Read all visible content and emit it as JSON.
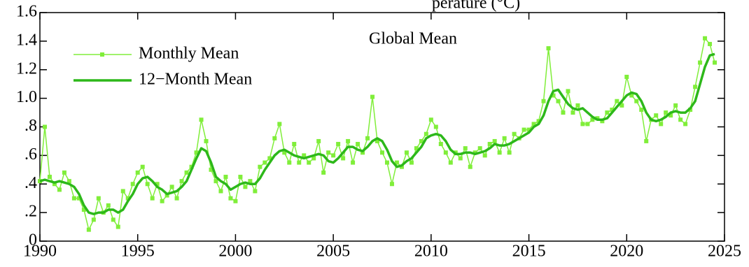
{
  "chart_data": {
    "type": "line",
    "title": "perature (°C)",
    "annotation": "Global Mean",
    "x": [
      1990,
      1990.25,
      1990.5,
      1990.75,
      1991,
      1991.25,
      1991.5,
      1991.75,
      1992,
      1992.25,
      1992.5,
      1992.75,
      1993,
      1993.25,
      1993.5,
      1993.75,
      1994,
      1994.25,
      1994.5,
      1994.75,
      1995,
      1995.25,
      1995.5,
      1995.75,
      1996,
      1996.25,
      1996.5,
      1996.75,
      1997,
      1997.25,
      1997.5,
      1997.75,
      1998,
      1998.25,
      1998.5,
      1998.75,
      1999,
      1999.25,
      1999.5,
      1999.75,
      2000,
      2000.25,
      2000.5,
      2000.75,
      2001,
      2001.25,
      2001.5,
      2001.75,
      2002,
      2002.25,
      2002.5,
      2002.75,
      2003,
      2003.25,
      2003.5,
      2003.75,
      2004,
      2004.25,
      2004.5,
      2004.75,
      2005,
      2005.25,
      2005.5,
      2005.75,
      2006,
      2006.25,
      2006.5,
      2006.75,
      2007,
      2007.25,
      2007.5,
      2007.75,
      2008,
      2008.25,
      2008.5,
      2008.75,
      2009,
      2009.25,
      2009.5,
      2009.75,
      2010,
      2010.25,
      2010.5,
      2010.75,
      2011,
      2011.25,
      2011.5,
      2011.75,
      2012,
      2012.25,
      2012.5,
      2012.75,
      2013,
      2013.25,
      2013.5,
      2013.75,
      2014,
      2014.25,
      2014.5,
      2014.75,
      2015,
      2015.25,
      2015.5,
      2015.75,
      2016,
      2016.25,
      2016.5,
      2016.75,
      2017,
      2017.25,
      2017.5,
      2017.75,
      2018,
      2018.25,
      2018.5,
      2018.75,
      2019,
      2019.25,
      2019.5,
      2019.75,
      2020,
      2020.25,
      2020.5,
      2020.75,
      2021,
      2021.25,
      2021.5,
      2021.75,
      2022,
      2022.25,
      2022.5,
      2022.75,
      2023,
      2023.25,
      2023.5,
      2023.75,
      2024,
      2024.25,
      2024.5
    ],
    "series": [
      {
        "name": "Monthly Mean",
        "color": "#80ee3a",
        "marker": "square",
        "line_width": 1.5,
        "values": [
          0.42,
          0.8,
          0.45,
          0.4,
          0.36,
          0.48,
          0.42,
          0.3,
          0.3,
          0.22,
          0.08,
          0.15,
          0.3,
          0.2,
          0.25,
          0.15,
          0.1,
          0.35,
          0.3,
          0.4,
          0.48,
          0.52,
          0.4,
          0.3,
          0.4,
          0.28,
          0.32,
          0.38,
          0.3,
          0.42,
          0.48,
          0.52,
          0.62,
          0.85,
          0.7,
          0.5,
          0.42,
          0.35,
          0.45,
          0.3,
          0.28,
          0.45,
          0.38,
          0.42,
          0.35,
          0.52,
          0.55,
          0.58,
          0.72,
          0.82,
          0.62,
          0.55,
          0.68,
          0.55,
          0.6,
          0.55,
          0.58,
          0.7,
          0.48,
          0.62,
          0.6,
          0.68,
          0.58,
          0.7,
          0.55,
          0.68,
          0.62,
          0.72,
          1.01,
          0.7,
          0.62,
          0.55,
          0.4,
          0.55,
          0.52,
          0.62,
          0.55,
          0.65,
          0.7,
          0.75,
          0.85,
          0.8,
          0.68,
          0.62,
          0.55,
          0.62,
          0.58,
          0.65,
          0.52,
          0.62,
          0.65,
          0.6,
          0.68,
          0.7,
          0.62,
          0.72,
          0.62,
          0.75,
          0.72,
          0.78,
          0.78,
          0.82,
          0.84,
          0.98,
          1.35,
          1.02,
          0.98,
          0.9,
          1.05,
          0.9,
          0.95,
          0.82,
          0.82,
          0.85,
          0.86,
          0.84,
          0.9,
          0.92,
          0.98,
          0.95,
          1.15,
          1.02,
          0.98,
          0.92,
          0.7,
          0.85,
          0.88,
          0.82,
          0.9,
          0.88,
          0.95,
          0.85,
          0.82,
          0.92,
          1.08,
          1.25,
          1.42,
          1.38,
          1.25
        ]
      },
      {
        "name": "12−Month Mean",
        "color": "#2db81a",
        "line_width": 3.5,
        "values": [
          0.42,
          0.43,
          0.42,
          0.41,
          0.42,
          0.41,
          0.4,
          0.38,
          0.33,
          0.25,
          0.2,
          0.19,
          0.2,
          0.2,
          0.22,
          0.22,
          0.2,
          0.22,
          0.28,
          0.33,
          0.4,
          0.44,
          0.45,
          0.42,
          0.38,
          0.36,
          0.33,
          0.34,
          0.35,
          0.38,
          0.42,
          0.5,
          0.58,
          0.65,
          0.63,
          0.55,
          0.45,
          0.42,
          0.4,
          0.36,
          0.38,
          0.4,
          0.41,
          0.4,
          0.4,
          0.44,
          0.5,
          0.55,
          0.6,
          0.63,
          0.64,
          0.62,
          0.6,
          0.59,
          0.58,
          0.59,
          0.6,
          0.61,
          0.6,
          0.56,
          0.55,
          0.58,
          0.62,
          0.66,
          0.66,
          0.64,
          0.63,
          0.66,
          0.7,
          0.72,
          0.7,
          0.64,
          0.56,
          0.52,
          0.53,
          0.56,
          0.58,
          0.62,
          0.66,
          0.72,
          0.74,
          0.75,
          0.74,
          0.7,
          0.64,
          0.61,
          0.61,
          0.62,
          0.62,
          0.61,
          0.62,
          0.63,
          0.65,
          0.68,
          0.67,
          0.67,
          0.68,
          0.7,
          0.72,
          0.74,
          0.76,
          0.8,
          0.82,
          0.88,
          0.98,
          1.05,
          1.06,
          1.01,
          0.96,
          0.93,
          0.92,
          0.93,
          0.9,
          0.87,
          0.85,
          0.85,
          0.86,
          0.9,
          0.94,
          0.98,
          1.02,
          1.04,
          1.03,
          0.98,
          0.9,
          0.85,
          0.84,
          0.85,
          0.87,
          0.9,
          0.91,
          0.9,
          0.9,
          0.93,
          0.98,
          1.1,
          1.22,
          1.3,
          1.31
        ]
      }
    ],
    "xlim": [
      1990,
      2025
    ],
    "xticks": [
      1990,
      1995,
      2000,
      2005,
      2010,
      2015,
      2020,
      2025
    ],
    "ylim": [
      0,
      1.6
    ],
    "yticks": [
      0,
      {
        "value": 0.2,
        "label": ".2"
      },
      {
        "value": 0.4,
        "label": ".4"
      },
      {
        "value": 0.6,
        "label": ".6"
      },
      {
        "value": 0.8,
        "label": ".8"
      },
      {
        "value": 1.0,
        "label": "1.0"
      },
      1.2,
      1.4,
      1.6
    ],
    "legend": "upper left"
  }
}
